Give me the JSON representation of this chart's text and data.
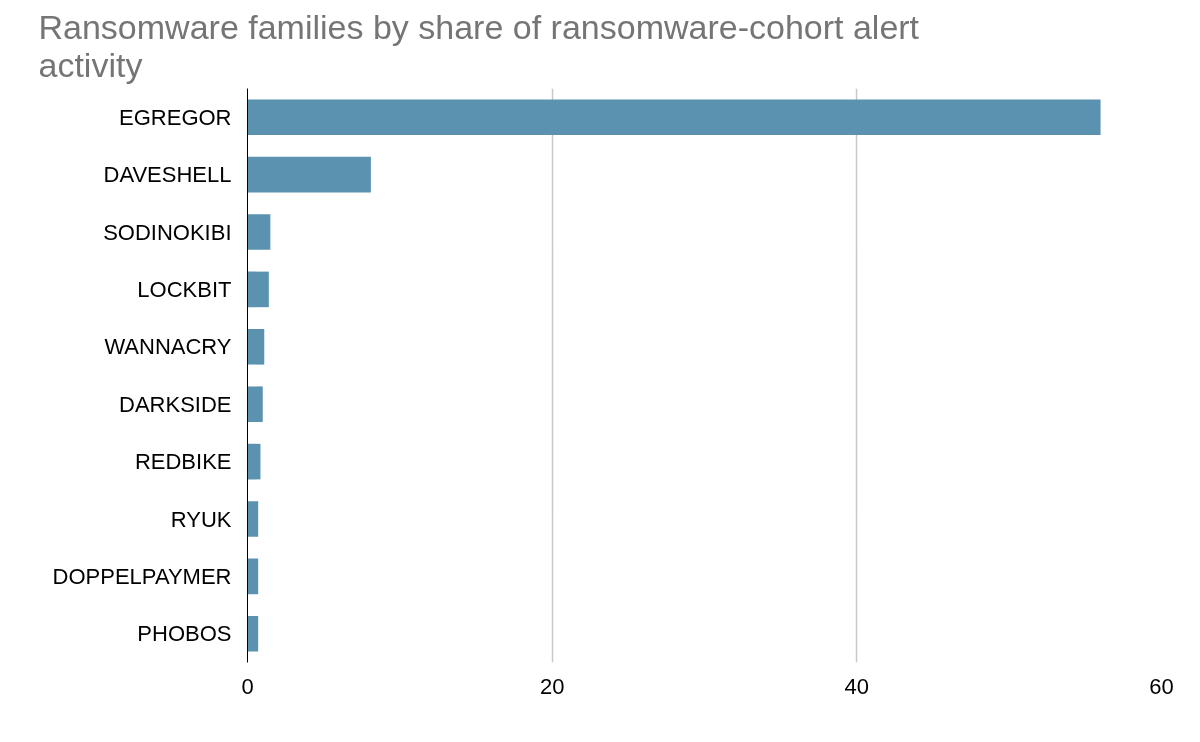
{
  "chart_data": {
    "type": "bar",
    "orientation": "horizontal",
    "title": "Ransomware families by share of ransomware-cohort alert activity",
    "categories": [
      "EGREGOR",
      "DAVESHELL",
      "SODINOKIBI",
      "LOCKBIT",
      "WANNACRY",
      "DARKSIDE",
      "REDBIKE",
      "RYUK",
      "DOPPELPAYMER",
      "PHOBOS"
    ],
    "values": [
      56,
      8.1,
      1.5,
      1.4,
      1.1,
      1.0,
      0.85,
      0.7,
      0.7,
      0.7
    ],
    "color": "#5b92b0",
    "xlim": [
      0,
      60
    ],
    "xticks": [
      0,
      20,
      40,
      60
    ],
    "grid": "x"
  }
}
